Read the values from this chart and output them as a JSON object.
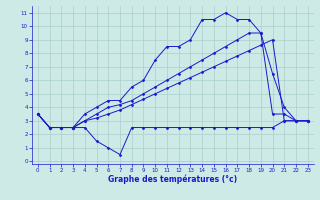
{
  "xlabel": "Graphe des températures (°c)",
  "background_color": "#ceeae7",
  "grid_color": "#aacfcc",
  "line_color": "#1a1acc",
  "xlim_min": -0.5,
  "xlim_max": 23.5,
  "ylim_min": -0.2,
  "ylim_max": 11.5,
  "xticks": [
    0,
    1,
    2,
    3,
    4,
    5,
    6,
    7,
    8,
    9,
    10,
    11,
    12,
    13,
    14,
    15,
    16,
    17,
    18,
    19,
    20,
    21,
    22,
    23
  ],
  "yticks": [
    0,
    1,
    2,
    3,
    4,
    5,
    6,
    7,
    8,
    9,
    10,
    11
  ],
  "series1_x": [
    0,
    1,
    2,
    3,
    4,
    5,
    6,
    7,
    8,
    9,
    10,
    11,
    12,
    13,
    14,
    15,
    16,
    17,
    18,
    19,
    20,
    21,
    22,
    23
  ],
  "series1_y": [
    3.5,
    2.5,
    2.5,
    2.5,
    2.5,
    1.5,
    1.0,
    0.5,
    2.5,
    2.5,
    2.5,
    2.5,
    2.5,
    2.5,
    2.5,
    2.5,
    2.5,
    2.5,
    2.5,
    2.5,
    2.5,
    3.0,
    3.0,
    3.0
  ],
  "series2_x": [
    0,
    1,
    2,
    3,
    4,
    5,
    6,
    7,
    8,
    9,
    10,
    11,
    12,
    13,
    14,
    15,
    16,
    17,
    18,
    19,
    20,
    21,
    22,
    23
  ],
  "series2_y": [
    3.5,
    2.5,
    2.5,
    2.5,
    3.5,
    4.0,
    4.5,
    4.5,
    5.5,
    6.0,
    7.5,
    8.5,
    8.5,
    9.0,
    10.5,
    10.5,
    11.0,
    10.5,
    10.5,
    9.5,
    6.5,
    4.0,
    3.0,
    3.0
  ],
  "series3_x": [
    0,
    1,
    2,
    3,
    4,
    5,
    6,
    7,
    8,
    9,
    10,
    11,
    12,
    13,
    14,
    15,
    16,
    17,
    18,
    19,
    20,
    21,
    22,
    23
  ],
  "series3_y": [
    3.5,
    2.5,
    2.5,
    2.5,
    3.0,
    3.5,
    4.0,
    4.2,
    4.5,
    5.0,
    5.5,
    6.0,
    6.5,
    7.0,
    7.5,
    8.0,
    8.5,
    9.0,
    9.5,
    9.5,
    3.5,
    3.5,
    3.0,
    3.0
  ],
  "series4_x": [
    0,
    1,
    2,
    3,
    4,
    5,
    6,
    7,
    8,
    9,
    10,
    11,
    12,
    13,
    14,
    15,
    16,
    17,
    18,
    19,
    20,
    21,
    22,
    23
  ],
  "series4_y": [
    3.5,
    2.5,
    2.5,
    2.5,
    3.0,
    3.2,
    3.5,
    3.8,
    4.2,
    4.6,
    5.0,
    5.4,
    5.8,
    6.2,
    6.6,
    7.0,
    7.4,
    7.8,
    8.2,
    8.6,
    9.0,
    3.0,
    3.0,
    3.0
  ]
}
